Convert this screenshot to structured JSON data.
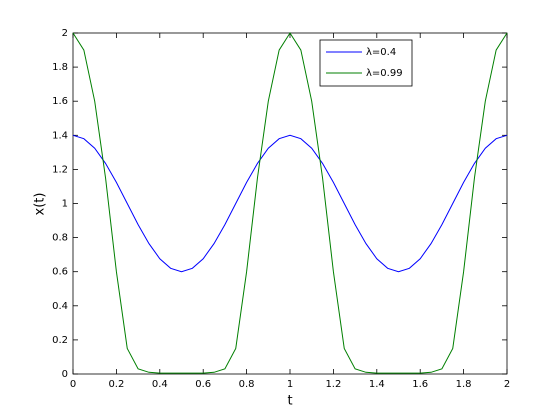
{
  "chart_data": {
    "type": "line",
    "xlabel": "t",
    "ylabel": "x(t)",
    "x": [
      0,
      0.05,
      0.1,
      0.15,
      0.2,
      0.25,
      0.3,
      0.35,
      0.4,
      0.45,
      0.5,
      0.55,
      0.6,
      0.65,
      0.7,
      0.75,
      0.8,
      0.85,
      0.9,
      0.95,
      1,
      1.05,
      1.1,
      1.15,
      1.2,
      1.25,
      1.3,
      1.35,
      1.4,
      1.45,
      1.5,
      1.55,
      1.6,
      1.65,
      1.7,
      1.75,
      1.8,
      1.85,
      1.9,
      1.95,
      2
    ],
    "series": [
      {
        "name": "λ=0.4",
        "color": "#0000ff",
        "values": [
          1.4,
          1.38,
          1.324,
          1.235,
          1.124,
          1.0,
          0.876,
          0.765,
          0.676,
          0.62,
          0.6,
          0.62,
          0.676,
          0.765,
          0.876,
          1.0,
          1.124,
          1.235,
          1.324,
          1.38,
          1.4,
          1.38,
          1.324,
          1.235,
          1.124,
          1.0,
          0.876,
          0.765,
          0.676,
          0.62,
          0.6,
          0.62,
          0.676,
          0.765,
          0.876,
          1.0,
          1.124,
          1.235,
          1.324,
          1.38,
          1.4
        ]
      },
      {
        "name": "λ=0.99",
        "color": "#007f00",
        "values": [
          2,
          1.9,
          1.6,
          1.15,
          0.6,
          0.15,
          0.03,
          0.01,
          0.005,
          0.005,
          0.005,
          0.005,
          0.005,
          0.01,
          0.03,
          0.15,
          0.6,
          1.15,
          1.6,
          1.9,
          2,
          1.9,
          1.6,
          1.15,
          0.6,
          0.15,
          0.03,
          0.01,
          0.005,
          0.005,
          0.005,
          0.005,
          0.005,
          0.01,
          0.03,
          0.15,
          0.6,
          1.15,
          1.6,
          1.9,
          2
        ]
      }
    ],
    "xlim": [
      0,
      2
    ],
    "ylim": [
      0,
      2
    ],
    "xticks": [
      0,
      0.2,
      0.4,
      0.6,
      0.8,
      1,
      1.2,
      1.4,
      1.6,
      1.8,
      2
    ],
    "yticks": [
      0,
      0.2,
      0.4,
      0.6,
      0.8,
      1,
      1.2,
      1.4,
      1.6,
      1.8,
      2
    ],
    "grid": false,
    "legend": "northeast"
  }
}
